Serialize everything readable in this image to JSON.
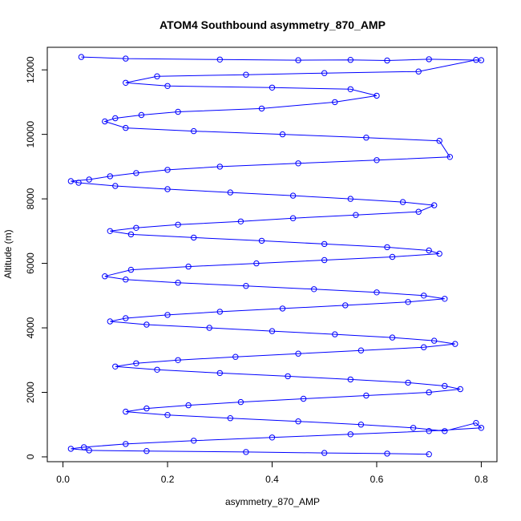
{
  "chart_data": {
    "type": "scatter",
    "title": "ATOM4 Southbound asymmetry_870_AMP",
    "xlabel": "asymmetry_870_AMP",
    "ylabel": "Altitude (m)",
    "xlim": [
      -0.03,
      0.83
    ],
    "ylim": [
      -150,
      12700
    ],
    "x_ticks": [
      0.0,
      0.2,
      0.4,
      0.6,
      0.8
    ],
    "x_tick_labels": [
      "0.0",
      "0.2",
      "0.4",
      "0.6",
      "0.8"
    ],
    "y_ticks": [
      0,
      2000,
      4000,
      6000,
      8000,
      10000,
      12000
    ],
    "y_tick_labels": [
      "0",
      "2000",
      "4000",
      "6000",
      "8000",
      "10000",
      "12000"
    ],
    "grid": false,
    "series": [
      {
        "color": "#0000ff",
        "marker": "open-circle",
        "connected": true,
        "x": [
          0.035,
          0.12,
          0.3,
          0.45,
          0.55,
          0.62,
          0.7,
          0.8,
          0.79,
          0.68,
          0.5,
          0.35,
          0.18,
          0.12,
          0.2,
          0.4,
          0.55,
          0.6,
          0.52,
          0.38,
          0.22,
          0.15,
          0.1,
          0.08,
          0.12,
          0.25,
          0.42,
          0.58,
          0.72,
          0.74,
          0.6,
          0.45,
          0.3,
          0.2,
          0.14,
          0.09,
          0.05,
          0.015,
          0.03,
          0.1,
          0.2,
          0.32,
          0.44,
          0.55,
          0.65,
          0.71,
          0.68,
          0.56,
          0.44,
          0.34,
          0.22,
          0.14,
          0.09,
          0.13,
          0.25,
          0.38,
          0.5,
          0.62,
          0.7,
          0.72,
          0.63,
          0.5,
          0.37,
          0.24,
          0.13,
          0.08,
          0.12,
          0.22,
          0.35,
          0.48,
          0.6,
          0.69,
          0.73,
          0.66,
          0.54,
          0.42,
          0.3,
          0.2,
          0.12,
          0.09,
          0.16,
          0.28,
          0.4,
          0.52,
          0.63,
          0.71,
          0.75,
          0.69,
          0.57,
          0.45,
          0.33,
          0.22,
          0.14,
          0.1,
          0.18,
          0.3,
          0.43,
          0.55,
          0.66,
          0.73,
          0.76,
          0.7,
          0.58,
          0.46,
          0.34,
          0.24,
          0.16,
          0.12,
          0.2,
          0.32,
          0.45,
          0.57,
          0.67,
          0.73,
          0.79,
          0.8,
          0.7,
          0.55,
          0.4,
          0.25,
          0.12,
          0.04,
          0.015,
          0.05,
          0.16,
          0.35,
          0.5,
          0.62,
          0.7
        ],
        "y": [
          12400,
          12350,
          12320,
          12300,
          12310,
          12290,
          12330,
          12300,
          12310,
          11950,
          11900,
          11850,
          11800,
          11600,
          11500,
          11450,
          11400,
          11200,
          11000,
          10800,
          10700,
          10600,
          10500,
          10400,
          10200,
          10100,
          10000,
          9900,
          9800,
          9300,
          9200,
          9100,
          9000,
          8900,
          8800,
          8700,
          8600,
          8550,
          8500,
          8400,
          8300,
          8200,
          8100,
          8000,
          7900,
          7800,
          7600,
          7500,
          7400,
          7300,
          7200,
          7100,
          7000,
          6900,
          6800,
          6700,
          6600,
          6500,
          6400,
          6300,
          6200,
          6100,
          6000,
          5900,
          5800,
          5600,
          5500,
          5400,
          5300,
          5200,
          5100,
          5000,
          4900,
          4800,
          4700,
          4600,
          4500,
          4400,
          4300,
          4200,
          4100,
          4000,
          3900,
          3800,
          3700,
          3600,
          3500,
          3400,
          3300,
          3200,
          3100,
          3000,
          2900,
          2800,
          2700,
          2600,
          2500,
          2400,
          2300,
          2200,
          2100,
          2000,
          1900,
          1800,
          1700,
          1600,
          1500,
          1400,
          1300,
          1200,
          1100,
          1000,
          900,
          800,
          1050,
          900,
          800,
          700,
          600,
          500,
          400,
          300,
          250,
          200,
          180,
          150,
          120,
          100,
          80
        ]
      }
    ]
  }
}
